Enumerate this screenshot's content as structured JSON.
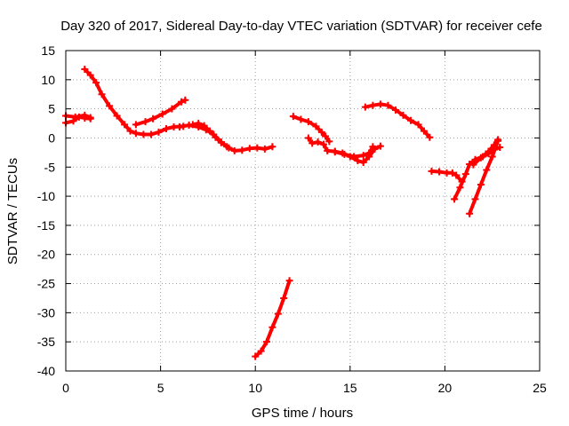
{
  "chart_data": {
    "type": "scatter",
    "title": "Day 320 of 2017, Sidereal Day-to-day VTEC variation (SDTVAR) for receiver cefe",
    "xlabel": "GPS time / hours",
    "ylabel": "SDTVAR / TECUs",
    "xlim": [
      0,
      25
    ],
    "ylim": [
      -40,
      15
    ],
    "xticks": [
      0,
      5,
      10,
      15,
      20,
      25
    ],
    "yticks": [
      15,
      10,
      5,
      0,
      -5,
      -10,
      -15,
      -20,
      -25,
      -30,
      -35,
      -40
    ],
    "grid": true,
    "marker": "plus",
    "color": "#ff0000",
    "series": [
      {
        "segments": [
          [
            [
              0.0,
              2.6
            ],
            [
              0.4,
              2.9
            ],
            [
              0.7,
              3.6
            ],
            [
              1.0,
              3.4
            ],
            [
              1.3,
              3.3
            ]
          ],
          [
            [
              0.0,
              3.8
            ],
            [
              0.5,
              3.6
            ],
            [
              1.0,
              3.9
            ],
            [
              1.3,
              3.5
            ]
          ],
          [
            [
              1.0,
              11.8
            ],
            [
              1.3,
              10.8
            ],
            [
              1.6,
              9.5
            ],
            [
              1.9,
              7.5
            ],
            [
              2.3,
              5.5
            ],
            [
              2.7,
              3.8
            ],
            [
              3.1,
              2.3
            ],
            [
              3.4,
              1.2
            ],
            [
              3.7,
              0.8
            ],
            [
              4.1,
              0.6
            ],
            [
              4.5,
              0.6
            ],
            [
              4.9,
              1.0
            ],
            [
              5.3,
              1.6
            ],
            [
              5.7,
              1.9
            ],
            [
              6.2,
              2.0
            ]
          ],
          [
            [
              3.7,
              2.3
            ],
            [
              4.2,
              2.8
            ],
            [
              4.6,
              3.3
            ],
            [
              5.1,
              4.1
            ],
            [
              5.6,
              5.0
            ],
            [
              6.1,
              6.2
            ],
            [
              6.3,
              6.5
            ]
          ],
          [
            [
              6.0,
              1.9
            ],
            [
              6.5,
              2.2
            ],
            [
              7.0,
              1.9
            ],
            [
              7.4,
              1.4
            ],
            [
              7.8,
              0.6
            ],
            [
              8.2,
              -0.7
            ],
            [
              8.6,
              -1.7
            ],
            [
              8.9,
              -2.2
            ],
            [
              9.3,
              -2.1
            ],
            [
              9.7,
              -1.8
            ],
            [
              10.1,
              -1.7
            ],
            [
              10.5,
              -1.9
            ],
            [
              10.9,
              -1.5
            ]
          ],
          [
            [
              6.7,
              2.3
            ],
            [
              7.0,
              2.5
            ],
            [
              7.3,
              2.1
            ],
            [
              7.6,
              1.2
            ],
            [
              7.9,
              0.1
            ],
            [
              8.2,
              -0.8
            ],
            [
              8.5,
              -1.5
            ]
          ],
          [
            [
              10.0,
              -37.5
            ],
            [
              10.3,
              -36.6
            ],
            [
              10.6,
              -35.0
            ],
            [
              10.9,
              -32.5
            ],
            [
              11.2,
              -30.2
            ],
            [
              11.5,
              -27.5
            ],
            [
              11.8,
              -24.5
            ]
          ],
          [
            [
              12.0,
              3.7
            ],
            [
              12.4,
              3.2
            ],
            [
              12.8,
              2.8
            ],
            [
              13.2,
              2.0
            ],
            [
              13.5,
              1.0
            ],
            [
              13.7,
              0.3
            ],
            [
              13.9,
              -0.6
            ]
          ],
          [
            [
              12.8,
              0.0
            ],
            [
              13.0,
              -0.9
            ],
            [
              13.3,
              -0.7
            ],
            [
              13.6,
              -1.1
            ],
            [
              13.8,
              -2.2
            ],
            [
              14.2,
              -2.3
            ],
            [
              14.6,
              -2.6
            ],
            [
              15.0,
              -3.2
            ],
            [
              15.4,
              -3.9
            ],
            [
              15.7,
              -4.2
            ],
            [
              16.0,
              -3.2
            ],
            [
              16.3,
              -1.9
            ],
            [
              16.6,
              -1.4
            ]
          ],
          [
            [
              14.2,
              -2.4
            ],
            [
              14.7,
              -2.8
            ],
            [
              15.2,
              -3.2
            ],
            [
              15.7,
              -3.0
            ],
            [
              16.0,
              -2.6
            ],
            [
              16.2,
              -1.5
            ]
          ],
          [
            [
              15.8,
              5.3
            ],
            [
              16.2,
              5.6
            ],
            [
              16.6,
              5.8
            ],
            [
              17.0,
              5.6
            ],
            [
              17.4,
              4.8
            ],
            [
              17.8,
              3.9
            ],
            [
              18.2,
              3.0
            ],
            [
              18.6,
              2.3
            ],
            [
              18.9,
              1.2
            ],
            [
              19.2,
              0.1
            ]
          ],
          [
            [
              19.3,
              -5.7
            ],
            [
              19.7,
              -5.8
            ],
            [
              20.1,
              -6.0
            ],
            [
              20.4,
              -6.0
            ],
            [
              20.6,
              -6.4
            ],
            [
              20.9,
              -7.5
            ]
          ],
          [
            [
              20.5,
              -10.5
            ],
            [
              20.8,
              -8.5
            ],
            [
              21.1,
              -6.2
            ],
            [
              21.3,
              -4.5
            ],
            [
              21.6,
              -3.7
            ],
            [
              22.0,
              -3.2
            ],
            [
              22.3,
              -2.7
            ],
            [
              22.6,
              -2.0
            ],
            [
              22.9,
              -1.6
            ]
          ],
          [
            [
              21.3,
              -13.0
            ],
            [
              21.6,
              -10.5
            ],
            [
              21.9,
              -8.0
            ],
            [
              22.2,
              -5.5
            ],
            [
              22.5,
              -3.2
            ],
            [
              22.8,
              -0.5
            ]
          ],
          [
            [
              21.5,
              -4.6
            ],
            [
              21.9,
              -3.4
            ],
            [
              22.3,
              -2.3
            ],
            [
              22.6,
              -1.2
            ],
            [
              22.8,
              -0.3
            ]
          ]
        ]
      }
    ]
  }
}
